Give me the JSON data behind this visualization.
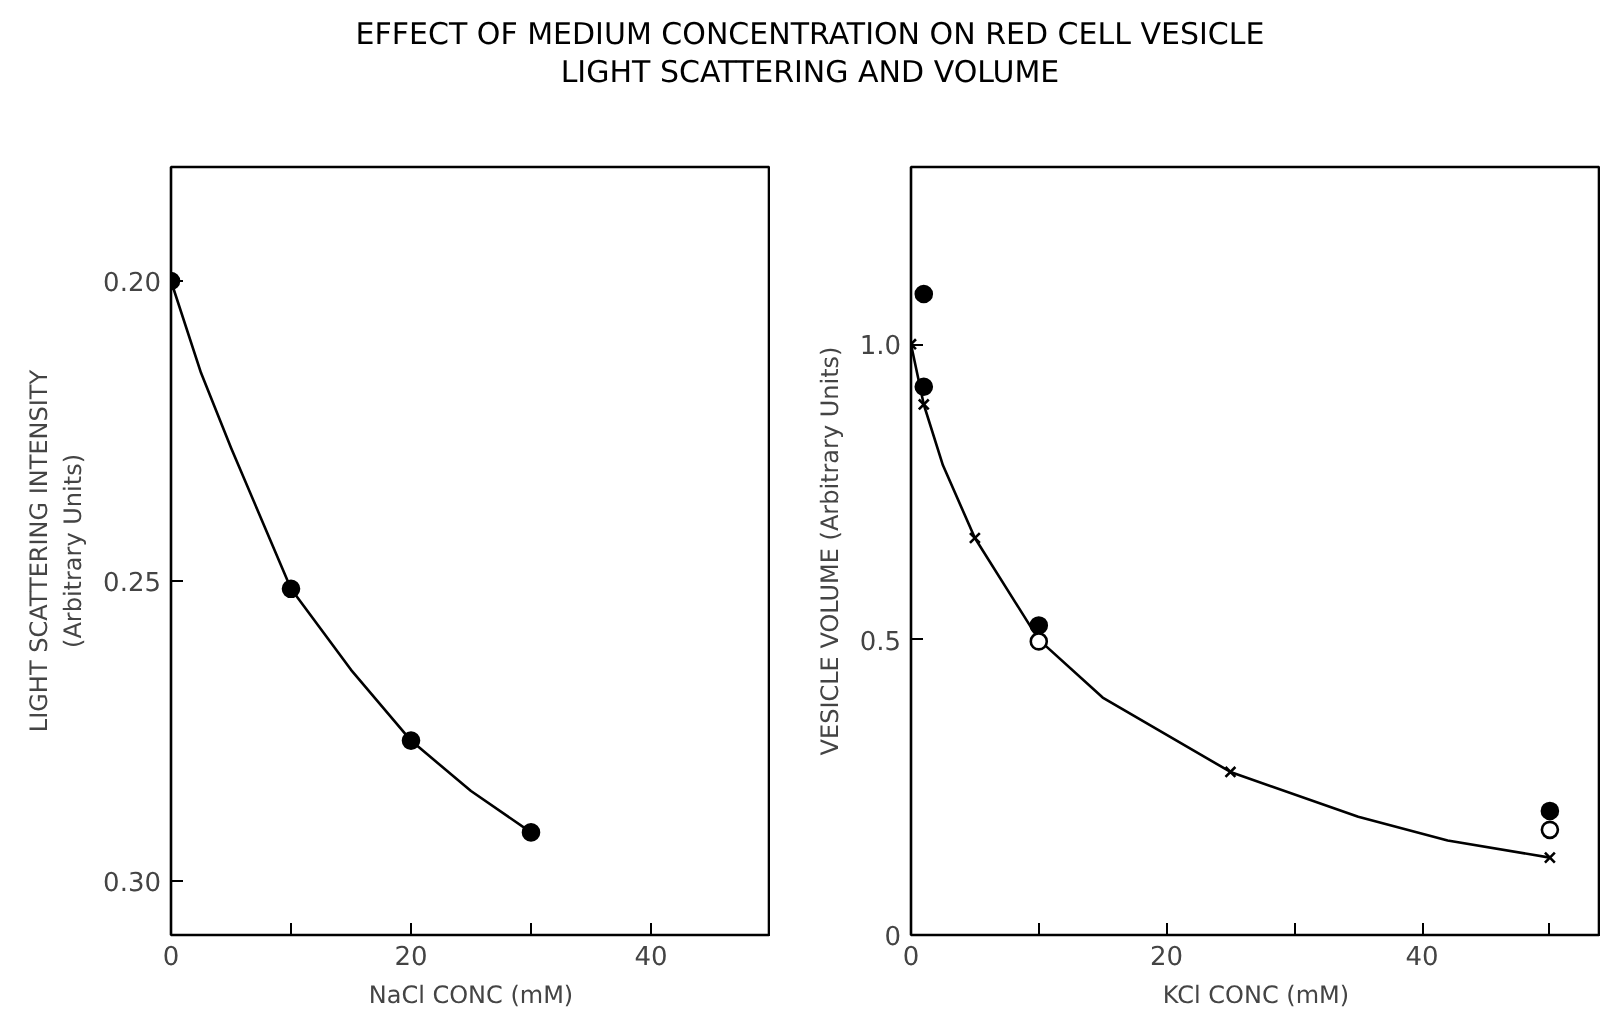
{
  "chart_data": [
    {
      "type": "scatter",
      "title": "EFFECT OF MEDIUM CONCENTRATION ON RED CELL VESICLE\nLIGHT SCATTERING AND VOLUME",
      "xlabel": "NaCl CONC (mM)",
      "ylabel": "LIGHT SCATTERING INTENSITY\n(Arbitrary Units)",
      "xlim": [
        0,
        50
      ],
      "xticks": [
        0,
        {
          "value": 10,
          "label": null
        },
        20,
        {
          "value": 30,
          "label": null
        },
        40
      ],
      "ylim": [
        0.309,
        0.181
      ],
      "yticks": [
        {
          "value": 0.2,
          "label": "0.20"
        },
        0.25,
        {
          "value": 0.3,
          "label": "0.30"
        }
      ],
      "grid": false,
      "series": [
        {
          "type": "line",
          "color": "#000000",
          "marker": "none",
          "line_style": "solid",
          "x": [
            0,
            2.5,
            5,
            10,
            15,
            20,
            25,
            30
          ],
          "values": [
            0.2,
            0.2153,
            0.2278,
            0.2513,
            0.2648,
            0.2766,
            0.285,
            0.2919
          ]
        },
        {
          "color": "#000000",
          "marker": "circle",
          "x": [
            0,
            10,
            20,
            30
          ],
          "values": [
            0.2,
            0.2513,
            0.2766,
            0.2919
          ]
        }
      ]
    },
    {
      "type": "scatter",
      "xlabel": "KCl CONC (mM)",
      "ylabel": "VESICLE VOLUME (Arbitrary Units)",
      "xlim": [
        0,
        54
      ],
      "xticks": [
        0,
        {
          "value": 10,
          "label": null
        },
        20,
        {
          "value": 30,
          "label": null
        },
        40,
        {
          "value": 50,
          "label": null
        }
      ],
      "ylim": [
        0,
        1.3
      ],
      "yticks": [
        0,
        0.5,
        {
          "value": 1.0,
          "label": "1.0"
        }
      ],
      "grid": false,
      "series": [
        {
          "type": "line",
          "color": "#000000",
          "marker": "none",
          "line_style": "solid",
          "x": [
            0,
            1,
            2.5,
            5,
            10,
            15,
            25,
            35,
            42,
            50
          ],
          "values": [
            1.0,
            0.898,
            0.795,
            0.672,
            0.5,
            0.402,
            0.276,
            0.2,
            0.16,
            0.131
          ]
        },
        {
          "color": "#000000",
          "marker": "circle",
          "x": [
            1,
            1,
            10,
            50
          ],
          "values": [
            1.085,
            0.928,
            0.524,
            0.21
          ]
        },
        {
          "color": "#ffffff",
          "marker": "circle",
          "x": [
            10,
            50
          ],
          "values": [
            0.497,
            0.178
          ]
        },
        {
          "color": "#000000",
          "marker": "cross",
          "x": [
            0,
            1,
            5,
            25,
            50
          ],
          "values": [
            1.0,
            0.898,
            0.672,
            0.276,
            0.131
          ]
        }
      ]
    }
  ]
}
